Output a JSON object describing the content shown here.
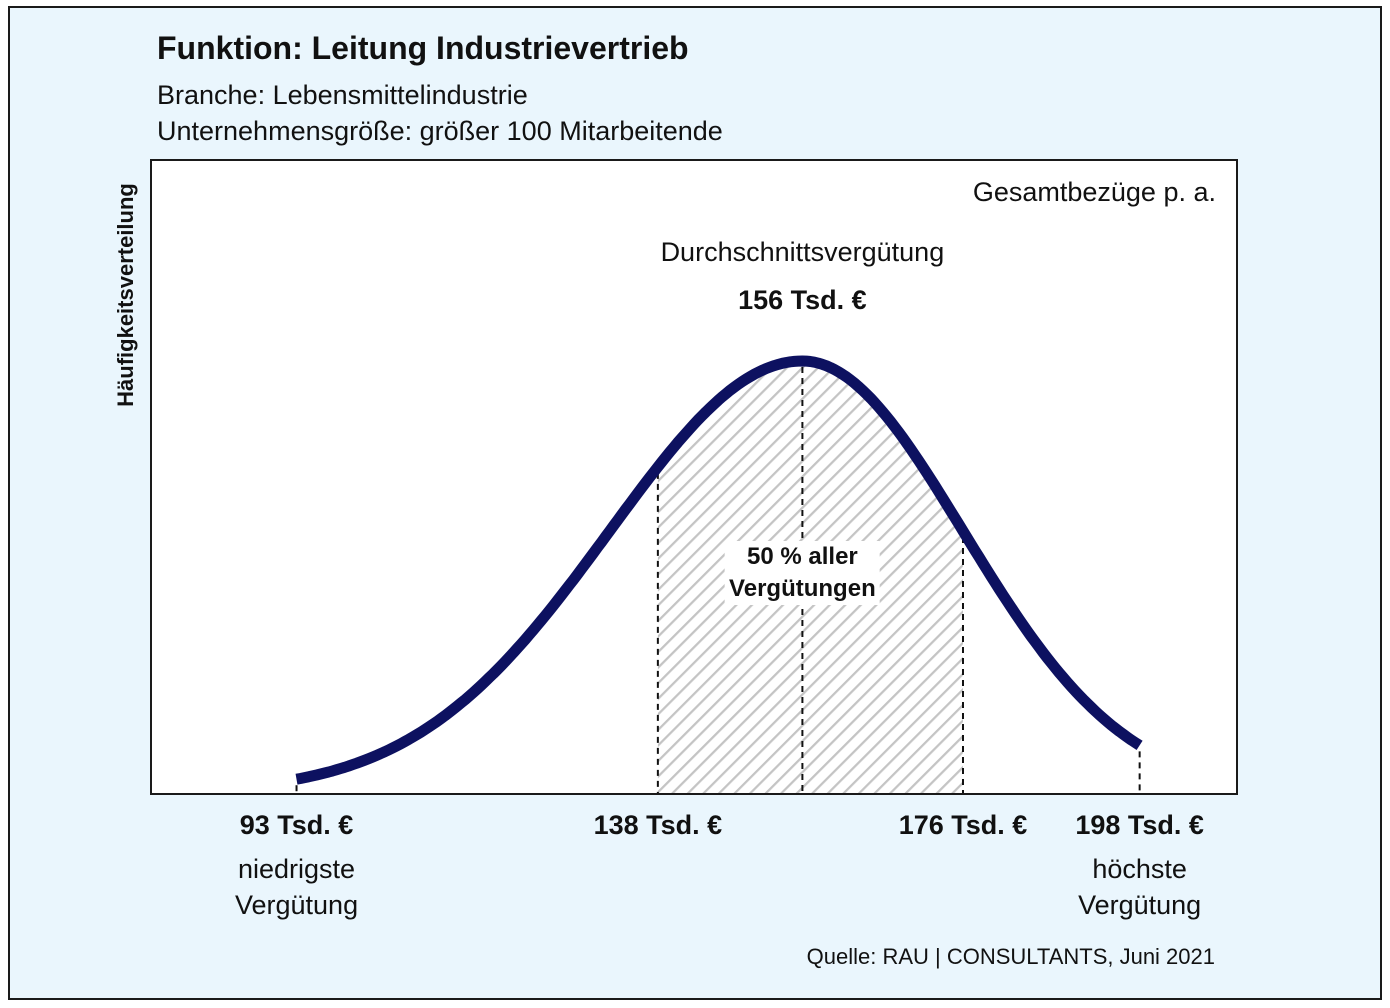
{
  "chart_data": {
    "type": "area",
    "title": "Funktion: Leitung Industrievertrieb",
    "subtitle_lines": [
      "Branche: Lebensmittelindustrie",
      "Unternehmensgröße: größer 100 Mitarbeitende"
    ],
    "ylabel": "Häufigkeitsverteilung",
    "corner_label": "Gesamtbezüge p. a.",
    "average": {
      "label": "Durchschnittsvergütung",
      "value": 156,
      "value_text": "156 Tsd. €"
    },
    "shaded_range": {
      "from": 138,
      "to": 176,
      "label_lines": [
        "50 % aller",
        "Vergütungen"
      ]
    },
    "ticks": [
      {
        "value": 93,
        "text": "93 Tsd. €",
        "desc_lines": [
          "niedrigste",
          "Vergütung"
        ]
      },
      {
        "value": 138,
        "text": "138 Tsd. €"
      },
      {
        "value": 176,
        "text": "176 Tsd. €"
      },
      {
        "value": 198,
        "text": "198 Tsd. €",
        "desc_lines": [
          "höchste",
          "Vergütung"
        ]
      }
    ],
    "xlim": [
      75,
      210
    ],
    "curve_color": "#0d1160",
    "hatch_color": "#c4c4c4",
    "source": "Quelle: RAU | CONSULTANTS, Juni 2021"
  }
}
